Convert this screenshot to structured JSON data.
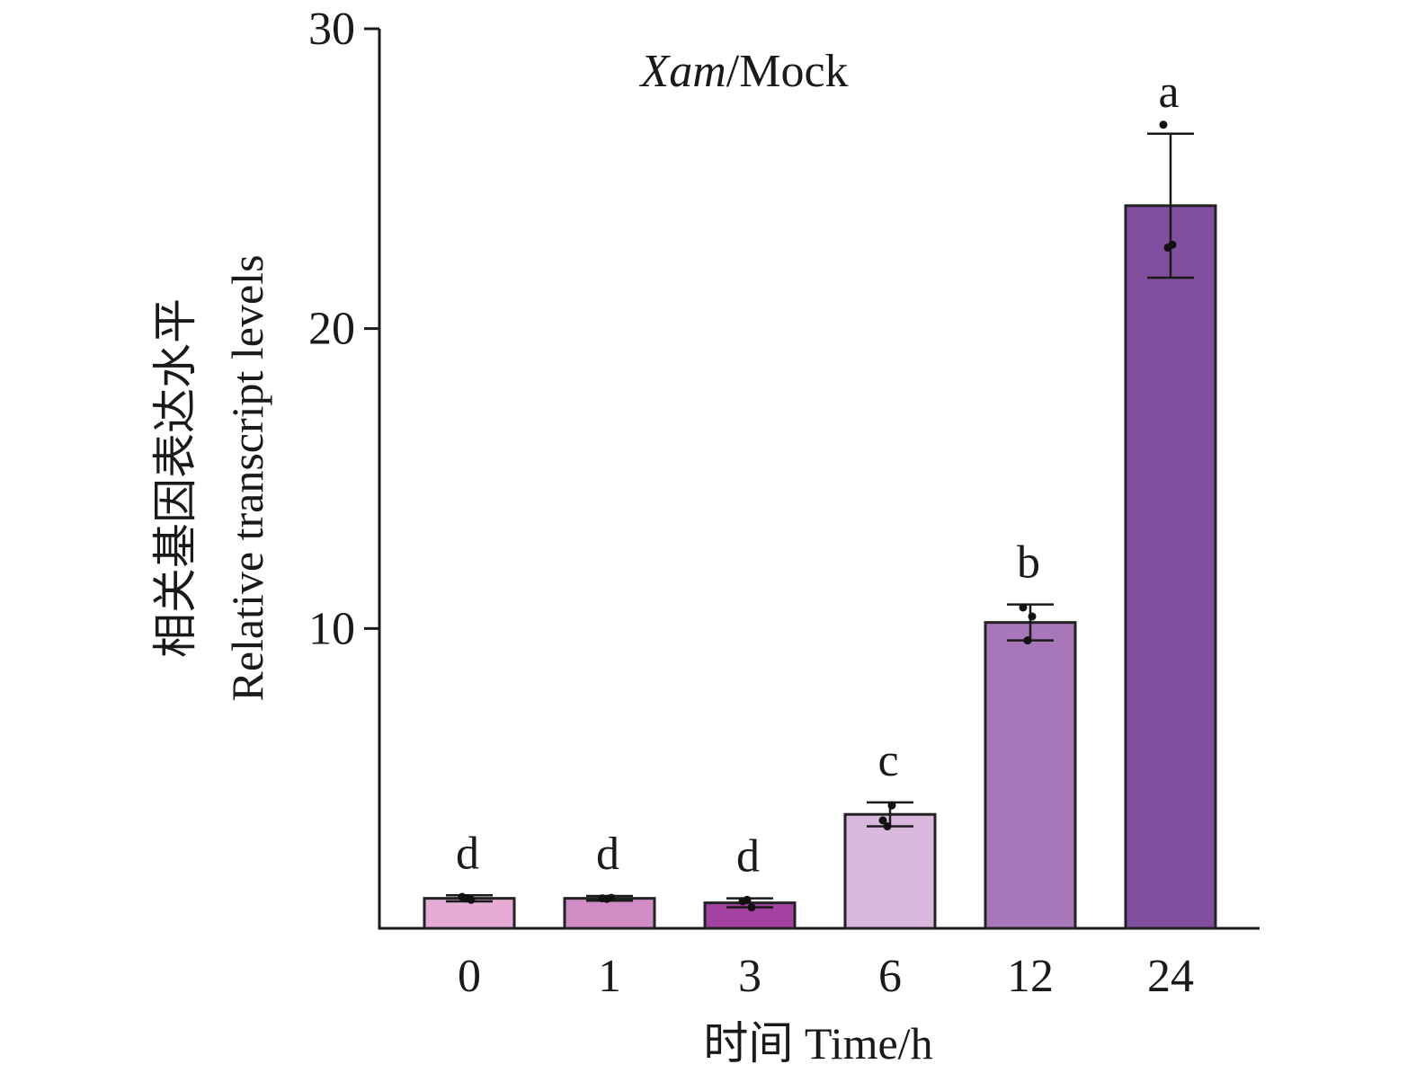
{
  "chart_data": {
    "type": "bar",
    "title_parts": {
      "italic": "Xam",
      "normal": "/Mock"
    },
    "xlabel": "时间 Time/h",
    "ylabel_cn": "相关基因表达水平",
    "ylabel_en": "Relative transcript levels",
    "categories": [
      "0",
      "1",
      "3",
      "6",
      "12",
      "24"
    ],
    "values": [
      1.0,
      1.0,
      0.85,
      3.8,
      10.2,
      24.1
    ],
    "error": [
      0.1,
      0.08,
      0.15,
      0.4,
      0.6,
      2.4
    ],
    "significance": [
      "d",
      "d",
      "d",
      "c",
      "b",
      "a"
    ],
    "points": [
      [
        1.05,
        0.95,
        1.0
      ],
      [
        1.0,
        1.02,
        0.98
      ],
      [
        0.9,
        0.7,
        0.95
      ],
      [
        3.6,
        4.1,
        3.4
      ],
      [
        10.7,
        10.4,
        9.6
      ],
      [
        26.8,
        22.8,
        22.7
      ]
    ],
    "ylim": [
      0,
      30
    ],
    "yticks": [
      10,
      20,
      30
    ],
    "colors": [
      "#E6ACD5",
      "#D18CC5",
      "#A442A1",
      "#DAB7DD",
      "#A877B9",
      "#824FA0"
    ],
    "grid": false
  }
}
